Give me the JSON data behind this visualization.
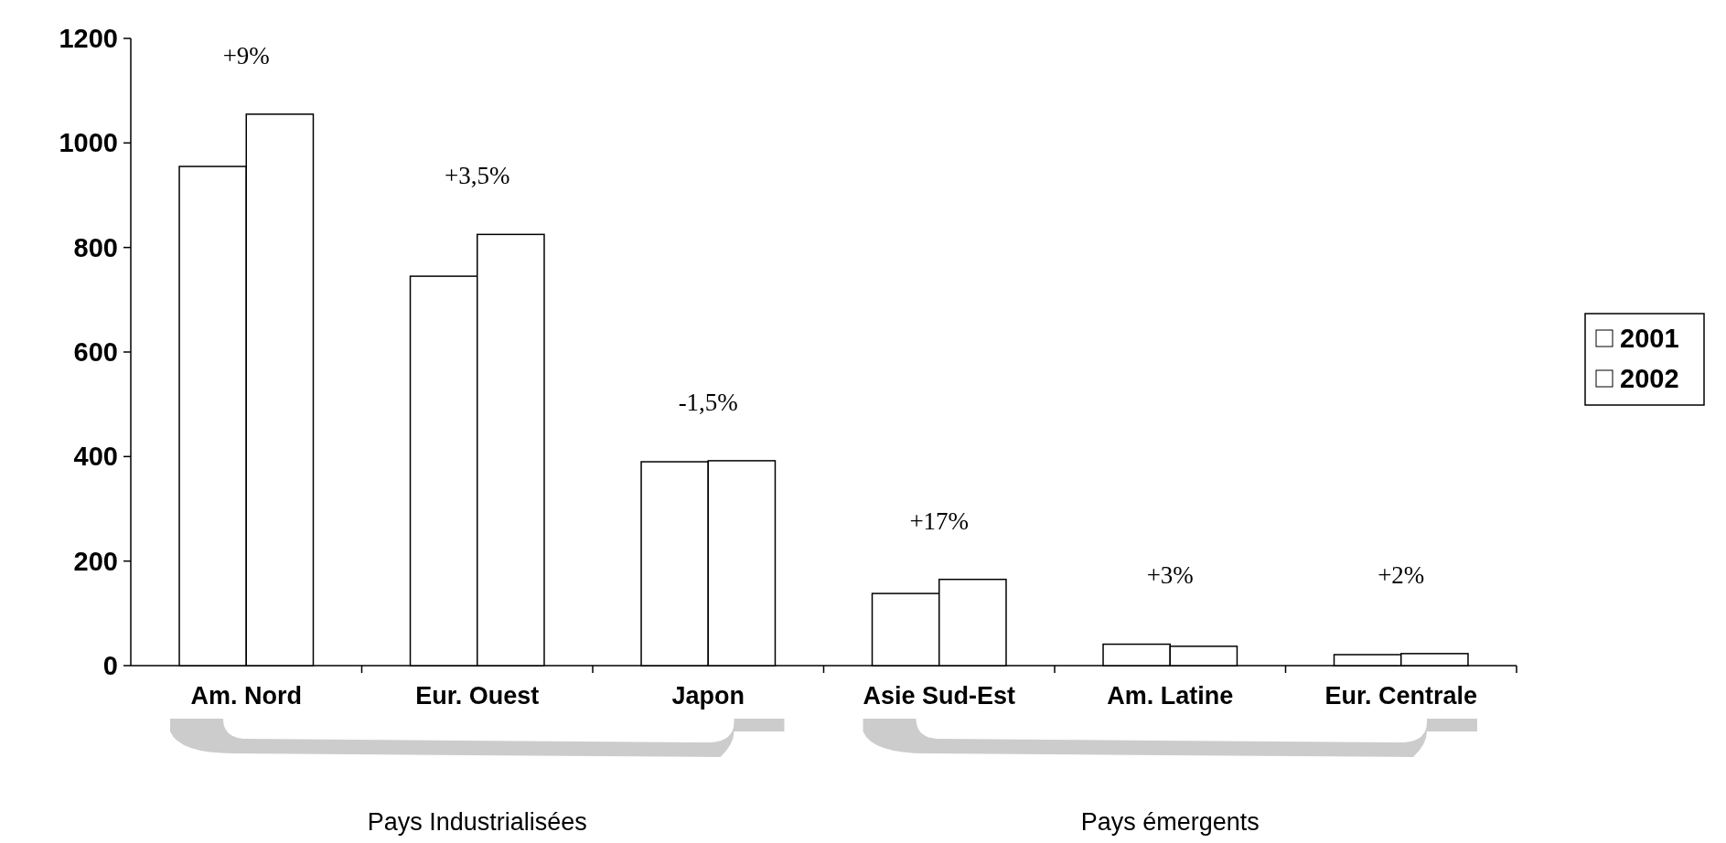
{
  "chart_data": {
    "type": "bar",
    "categories": [
      "Am. Nord",
      "Eur. Ouest",
      "Japon",
      "Asie Sud-Est",
      "Am. Latine",
      "Eur. Centrale"
    ],
    "series": [
      {
        "name": "2001",
        "color": "#ffffff",
        "values": [
          955,
          745,
          390,
          138,
          41,
          21
        ]
      },
      {
        "name": "2002",
        "color": "#ffffff",
        "values": [
          1055,
          825,
          392,
          165,
          37,
          23
        ]
      }
    ],
    "ylim": [
      0,
      1200
    ],
    "yticks": [
      0,
      200,
      400,
      600,
      800,
      1000,
      1200
    ],
    "grid": false,
    "legend": "right",
    "annotations": [
      "+9%",
      "+3,5%",
      "-1,5%",
      "+17%",
      "+3%",
      "+2%",
      "Pays Industrialisées",
      "Pays émergents"
    ]
  }
}
